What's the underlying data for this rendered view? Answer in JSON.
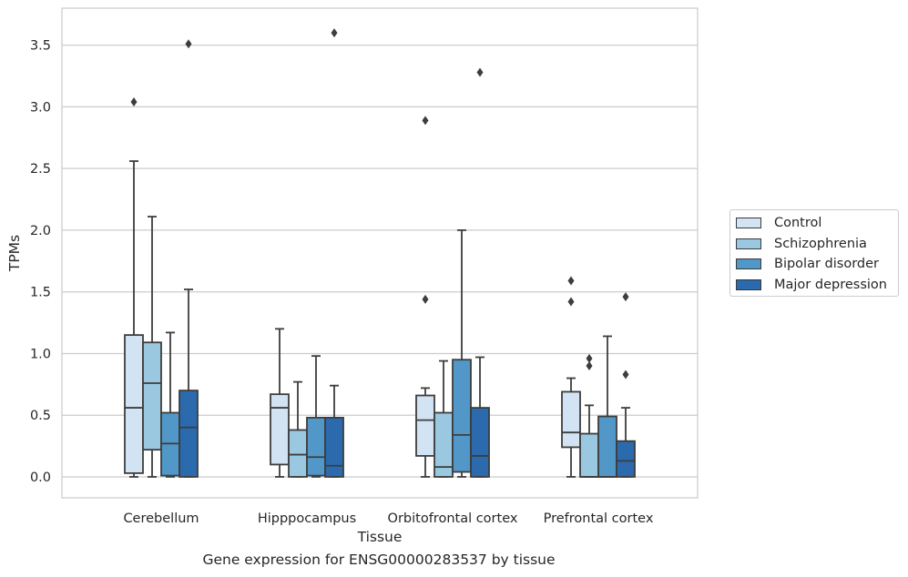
{
  "chart_data": {
    "type": "box",
    "xlabel": "Tissue",
    "ylabel": "TPMs",
    "ylim": [
      -0.17,
      3.8
    ],
    "yticks": [
      "0.0",
      "0.5",
      "1.0",
      "1.5",
      "2.0",
      "2.5",
      "3.0",
      "3.5"
    ],
    "grid": "horizontal",
    "legend_position": "right",
    "categories": [
      "Cerebellum",
      "Hipppocampus",
      "Orbitofrontal cortex",
      "Prefrontal cortex"
    ],
    "series": [
      {
        "name": "Control",
        "color": "#d2e3f3",
        "boxes": [
          {
            "q1": 0.03,
            "median": 0.56,
            "q3": 1.15,
            "whislo": 0.0,
            "whishi": 2.56,
            "fliers": [
              3.04
            ]
          },
          {
            "q1": 0.1,
            "median": 0.56,
            "q3": 0.67,
            "whislo": 0.0,
            "whishi": 1.2,
            "fliers": []
          },
          {
            "q1": 0.17,
            "median": 0.46,
            "q3": 0.66,
            "whislo": 0.0,
            "whishi": 0.72,
            "fliers": [
              1.44,
              2.89
            ]
          },
          {
            "q1": 0.24,
            "median": 0.36,
            "q3": 0.69,
            "whislo": 0.0,
            "whishi": 0.8,
            "fliers": [
              1.42,
              1.59
            ]
          }
        ]
      },
      {
        "name": "Schizophrenia",
        "color": "#9ac8e0",
        "boxes": [
          {
            "q1": 0.22,
            "median": 0.76,
            "q3": 1.09,
            "whislo": 0.0,
            "whishi": 2.11,
            "fliers": []
          },
          {
            "q1": 0.0,
            "median": 0.18,
            "q3": 0.38,
            "whislo": 0.0,
            "whishi": 0.77,
            "fliers": []
          },
          {
            "q1": 0.0,
            "median": 0.08,
            "q3": 0.52,
            "whislo": 0.0,
            "whishi": 0.94,
            "fliers": []
          },
          {
            "q1": 0.0,
            "median": 0.0,
            "q3": 0.35,
            "whislo": 0.0,
            "whishi": 0.58,
            "fliers": [
              0.9,
              0.96
            ]
          }
        ]
      },
      {
        "name": "Bipolar disorder",
        "color": "#5198c8",
        "boxes": [
          {
            "q1": 0.01,
            "median": 0.27,
            "q3": 0.52,
            "whislo": 0.0,
            "whishi": 1.17,
            "fliers": []
          },
          {
            "q1": 0.01,
            "median": 0.16,
            "q3": 0.48,
            "whislo": 0.0,
            "whishi": 0.98,
            "fliers": []
          },
          {
            "q1": 0.04,
            "median": 0.34,
            "q3": 0.95,
            "whislo": 0.0,
            "whishi": 2.0,
            "fliers": []
          },
          {
            "q1": 0.0,
            "median": 0.0,
            "q3": 0.49,
            "whislo": 0.0,
            "whishi": 1.14,
            "fliers": []
          }
        ]
      },
      {
        "name": "Major depression",
        "color": "#2a6aad",
        "boxes": [
          {
            "q1": 0.0,
            "median": 0.4,
            "q3": 0.7,
            "whislo": 0.0,
            "whishi": 1.52,
            "fliers": [
              3.51
            ]
          },
          {
            "q1": 0.0,
            "median": 0.09,
            "q3": 0.48,
            "whislo": 0.0,
            "whishi": 0.74,
            "fliers": [
              3.6
            ]
          },
          {
            "q1": 0.0,
            "median": 0.17,
            "q3": 0.56,
            "whislo": 0.0,
            "whishi": 0.97,
            "fliers": [
              3.28
            ]
          },
          {
            "q1": 0.0,
            "median": 0.13,
            "q3": 0.29,
            "whislo": 0.0,
            "whishi": 0.56,
            "fliers": [
              0.83,
              1.46
            ]
          }
        ]
      }
    ]
  },
  "caption": "Gene expression for ENSG00000283537 by tissue"
}
